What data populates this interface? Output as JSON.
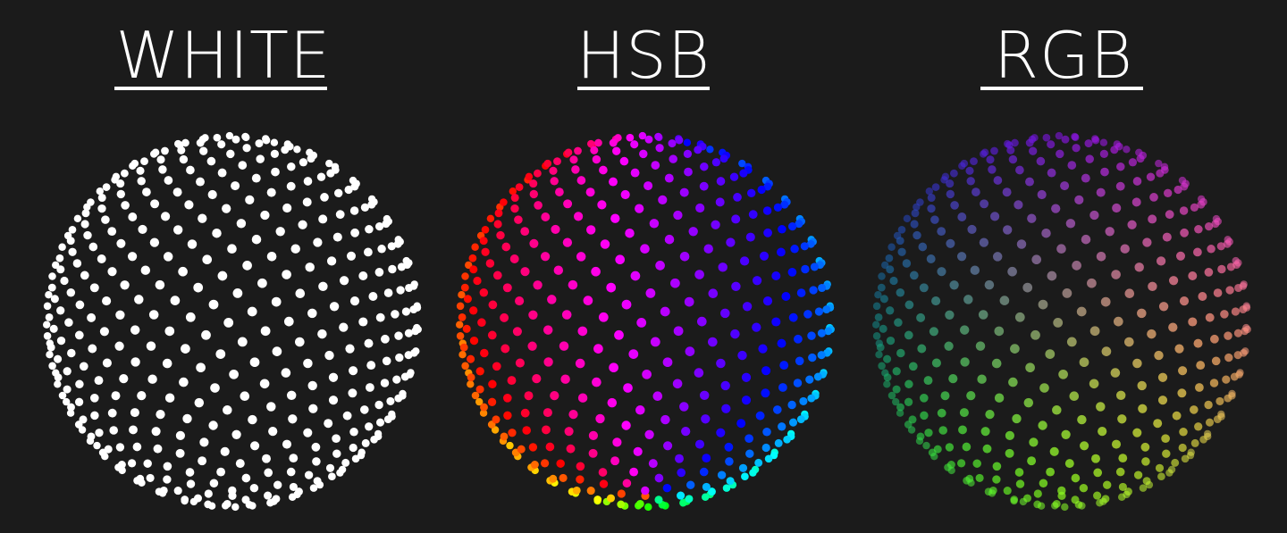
{
  "background_color": "#1b1b1b",
  "panels": [
    {
      "title": "WHITE",
      "mode": "white",
      "dot_color": "#ffffff"
    },
    {
      "title": "HSB",
      "mode": "hsb"
    },
    {
      "title": "RGB",
      "mode": "rgb"
    }
  ]
}
